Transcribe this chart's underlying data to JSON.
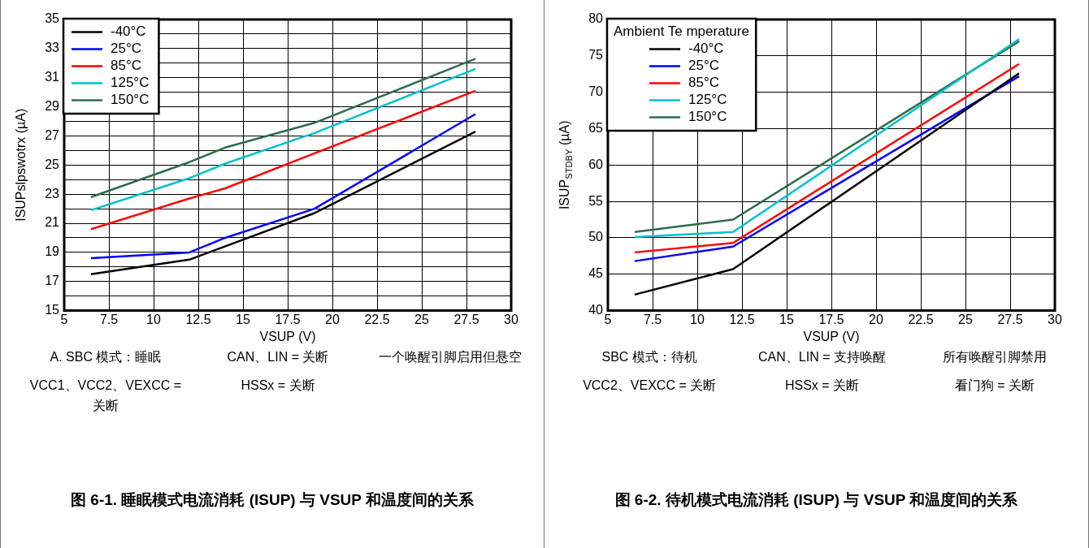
{
  "chart_data": [
    {
      "type": "line",
      "title": "图 6-1. 睡眠模式电流消耗 (ISUP) 与 VSUP 和温度间的关系",
      "xlabel": "VSUP (V)",
      "ylabel": "ISUPslpswotrx (µA)",
      "xlim": [
        5,
        30
      ],
      "xticks": [
        5,
        7.5,
        10,
        12.5,
        15,
        17.5,
        20,
        22.5,
        25,
        27.5,
        30
      ],
      "ylim": [
        15,
        35
      ],
      "yticks": [
        15,
        {
          "value": 16,
          "label": null
        },
        17,
        {
          "value": 18,
          "label": null
        },
        19,
        {
          "value": 20,
          "label": null
        },
        21,
        {
          "value": 22,
          "label": null
        },
        23,
        {
          "value": 24,
          "label": null
        },
        25,
        {
          "value": 26,
          "label": null
        },
        27,
        {
          "value": 28,
          "label": null
        },
        29,
        {
          "value": 30,
          "label": null
        },
        31,
        {
          "value": 32,
          "label": null
        },
        33,
        {
          "value": 34,
          "label": null
        },
        35
      ],
      "grid": true,
      "legend": "top left",
      "line_style": "solid",
      "marker": "none",
      "series": [
        {
          "name": "-40°C",
          "color": "#000000",
          "x": [
            6.5,
            12,
            19,
            28
          ],
          "values": [
            17.5,
            18.5,
            21.7,
            27.3
          ]
        },
        {
          "name": "25°C",
          "color": "#0000ff",
          "x": [
            6.5,
            12,
            14,
            19,
            28
          ],
          "values": [
            18.6,
            19.0,
            20.0,
            22.0,
            28.5
          ]
        },
        {
          "name": "85°C",
          "color": "#ff0000",
          "x": [
            6.5,
            12,
            14,
            19,
            28
          ],
          "values": [
            20.6,
            22.7,
            23.4,
            25.8,
            30.1
          ]
        },
        {
          "name": "125°C",
          "color": "#00c0d0",
          "x": [
            6.5,
            12,
            14,
            19,
            28
          ],
          "values": [
            21.9,
            24.1,
            25.1,
            27.2,
            31.6
          ]
        },
        {
          "name": "150°C",
          "color": "#2e6b4a",
          "x": [
            6.5,
            12,
            14,
            19,
            28
          ],
          "values": [
            22.8,
            25.2,
            26.2,
            27.9,
            32.3
          ]
        }
      ],
      "annotations": [
        "A. SBC 模式：睡眠",
        "CAN、LIN = 关断",
        "一个唤醒引脚启用但悬空",
        "VCC1、VCC2、VEXCC = 关断",
        "HSSx = 关断"
      ]
    },
    {
      "type": "line",
      "title": "图 6-2. 待机模式电流消耗 (ISUP) 与 VSUP 和温度间的关系",
      "xlabel": "VSUP (V)",
      "ylabel": "ISUP$_{STDBY}$ (µA)",
      "legend_title": "Ambient Te mperature",
      "xlim": [
        5,
        30
      ],
      "xticks": [
        5,
        7.5,
        10,
        12.5,
        15,
        17.5,
        20,
        22.5,
        25,
        27.5,
        30
      ],
      "ylim": [
        40,
        80
      ],
      "yticks": [
        40,
        45,
        50,
        55,
        60,
        65,
        70,
        75,
        80
      ],
      "grid": true,
      "legend": "top left",
      "line_style": "solid",
      "marker": "none",
      "series": [
        {
          "name": "-40°C",
          "color": "#000000",
          "x": [
            6.5,
            12,
            28
          ],
          "values": [
            42.2,
            45.7,
            72.6
          ]
        },
        {
          "name": "25°C",
          "color": "#0000ff",
          "x": [
            6.5,
            12,
            28
          ],
          "values": [
            46.8,
            48.8,
            72.2
          ]
        },
        {
          "name": "85°C",
          "color": "#ff0000",
          "x": [
            6.5,
            12,
            28
          ],
          "values": [
            48.0,
            49.3,
            73.9
          ]
        },
        {
          "name": "125°C",
          "color": "#00c0d0",
          "x": [
            6.5,
            12,
            28
          ],
          "values": [
            50.1,
            50.8,
            77.3
          ]
        },
        {
          "name": "150°C",
          "color": "#2e6b4a",
          "x": [
            6.5,
            12,
            28
          ],
          "values": [
            50.8,
            52.5,
            77.0
          ]
        }
      ],
      "annotations": [
        "SBC 模式：待机",
        "CAN、LIN = 支持唤醒",
        "所有唤醒引脚禁用",
        "VCC2、VEXCC = 关断",
        "HSSx = 关断",
        "看门狗 = 关断"
      ]
    }
  ]
}
